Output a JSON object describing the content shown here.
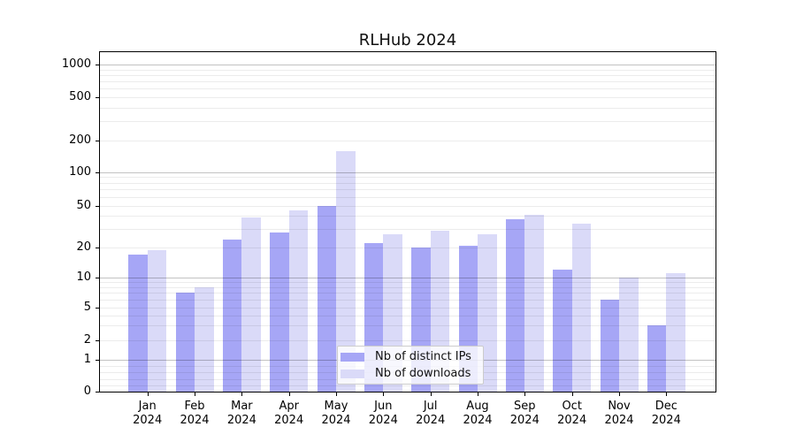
{
  "chart_data": {
    "type": "bar",
    "title": "RLHub 2024",
    "categories": [
      "Jan",
      "Feb",
      "Mar",
      "Apr",
      "May",
      "Jun",
      "Jul",
      "Aug",
      "Sep",
      "Oct",
      "Nov",
      "Dec"
    ],
    "x_year_label": "2024",
    "series": [
      {
        "name": "Nb of distinct IPs",
        "color": "#a6a6f6",
        "values": [
          17,
          7,
          24,
          28,
          50,
          22,
          20,
          21,
          37,
          12,
          6,
          3
        ]
      },
      {
        "name": "Nb of downloads",
        "color": "#dadaf8",
        "values": [
          19,
          8,
          39,
          45,
          160,
          27,
          29,
          27,
          41,
          34,
          10,
          11
        ]
      }
    ],
    "xlabel": "",
    "ylabel": "",
    "yscale": "symlog",
    "y_ticks": [
      0,
      1,
      2,
      5,
      10,
      20,
      50,
      100,
      200,
      500,
      1000
    ],
    "ylim": [
      0,
      1300
    ],
    "grid": true,
    "legend_position": "lower-center-inside"
  }
}
